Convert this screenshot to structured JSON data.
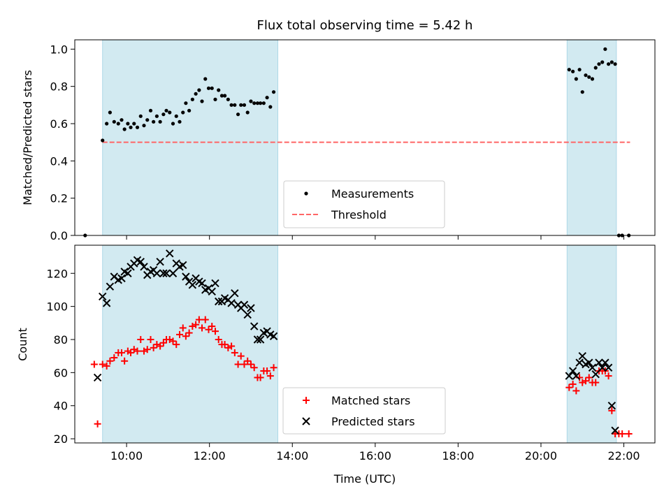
{
  "colors": {
    "shade": "#add8e6",
    "measurement": "#000000",
    "threshold": "#ff6666",
    "matched": "#ff0000",
    "predicted": "#000000"
  },
  "chart_data": [
    {
      "type": "scatter",
      "title": "Flux total observing time = 5.42 h",
      "xlabel": "",
      "ylabel": "Matched/Predicted stars",
      "xlim": [
        8.75,
        22.75
      ],
      "ylim": [
        0.0,
        1.05
      ],
      "yticks": [
        0.0,
        0.2,
        0.4,
        0.6,
        0.8,
        1.0
      ],
      "ytick_labels": [
        "0.0",
        "0.2",
        "0.4",
        "0.6",
        "0.8",
        "1.0"
      ],
      "xticks": [
        10,
        12,
        14,
        16,
        18,
        20,
        22
      ],
      "shaded_intervals": [
        [
          9.42,
          13.65
        ],
        [
          20.63,
          21.82
        ]
      ],
      "legend_position": "lower-center",
      "series": [
        {
          "name": "Measurements",
          "marker": "dot",
          "points": [
            [
              9.0,
              0.0
            ],
            [
              9.42,
              0.51
            ],
            [
              9.52,
              0.6
            ],
            [
              9.6,
              0.66
            ],
            [
              9.7,
              0.61
            ],
            [
              9.8,
              0.6
            ],
            [
              9.88,
              0.62
            ],
            [
              9.95,
              0.57
            ],
            [
              10.03,
              0.6
            ],
            [
              10.1,
              0.58
            ],
            [
              10.18,
              0.6
            ],
            [
              10.26,
              0.58
            ],
            [
              10.34,
              0.64
            ],
            [
              10.42,
              0.59
            ],
            [
              10.5,
              0.62
            ],
            [
              10.58,
              0.67
            ],
            [
              10.65,
              0.61
            ],
            [
              10.73,
              0.64
            ],
            [
              10.81,
              0.61
            ],
            [
              10.89,
              0.65
            ],
            [
              10.96,
              0.67
            ],
            [
              11.04,
              0.66
            ],
            [
              11.12,
              0.6
            ],
            [
              11.2,
              0.64
            ],
            [
              11.28,
              0.61
            ],
            [
              11.36,
              0.66
            ],
            [
              11.43,
              0.71
            ],
            [
              11.51,
              0.67
            ],
            [
              11.59,
              0.73
            ],
            [
              11.67,
              0.76
            ],
            [
              11.75,
              0.78
            ],
            [
              11.82,
              0.72
            ],
            [
              11.9,
              0.84
            ],
            [
              11.98,
              0.79
            ],
            [
              12.06,
              0.79
            ],
            [
              12.14,
              0.73
            ],
            [
              12.22,
              0.78
            ],
            [
              12.3,
              0.75
            ],
            [
              12.37,
              0.75
            ],
            [
              12.45,
              0.73
            ],
            [
              12.53,
              0.7
            ],
            [
              12.61,
              0.7
            ],
            [
              12.69,
              0.65
            ],
            [
              12.76,
              0.7
            ],
            [
              12.84,
              0.7
            ],
            [
              12.92,
              0.66
            ],
            [
              13.0,
              0.72
            ],
            [
              13.08,
              0.71
            ],
            [
              13.16,
              0.71
            ],
            [
              13.23,
              0.71
            ],
            [
              13.31,
              0.71
            ],
            [
              13.39,
              0.74
            ],
            [
              13.47,
              0.69
            ],
            [
              13.55,
              0.77
            ],
            [
              20.68,
              0.89
            ],
            [
              20.77,
              0.88
            ],
            [
              20.85,
              0.84
            ],
            [
              20.93,
              0.89
            ],
            [
              21.0,
              0.77
            ],
            [
              21.08,
              0.86
            ],
            [
              21.16,
              0.85
            ],
            [
              21.24,
              0.84
            ],
            [
              21.32,
              0.9
            ],
            [
              21.4,
              0.92
            ],
            [
              21.48,
              0.93
            ],
            [
              21.55,
              1.0
            ],
            [
              21.63,
              0.92
            ],
            [
              21.71,
              0.93
            ],
            [
              21.79,
              0.92
            ],
            [
              21.88,
              0.0
            ],
            [
              21.96,
              0.0
            ],
            [
              22.12,
              0.0
            ]
          ]
        },
        {
          "name": "Threshold",
          "style": "dashed-line",
          "x": [
            9.42,
            22.15
          ],
          "y": [
            0.5,
            0.5
          ]
        }
      ]
    },
    {
      "type": "scatter",
      "title": "",
      "xlabel": "Time (UTC)",
      "ylabel": "Count",
      "xlim": [
        8.75,
        22.75
      ],
      "ylim": [
        17.5,
        137
      ],
      "yticks": [
        20,
        40,
        60,
        80,
        100,
        120
      ],
      "ytick_labels": [
        "20",
        "40",
        "60",
        "80",
        "100",
        "120"
      ],
      "xticks": [
        10,
        12,
        14,
        16,
        18,
        20,
        22
      ],
      "xtick_labels": [
        "10:00",
        "12:00",
        "14:00",
        "16:00",
        "18:00",
        "20:00",
        "22:00"
      ],
      "shaded_intervals": [
        [
          9.42,
          13.65
        ],
        [
          20.63,
          21.82
        ]
      ],
      "legend_position": "lower-center",
      "series": [
        {
          "name": "Matched stars",
          "marker": "plus",
          "points": [
            [
              9.22,
              65
            ],
            [
              9.3,
              29
            ],
            [
              9.42,
              65
            ],
            [
              9.52,
              64
            ],
            [
              9.6,
              67
            ],
            [
              9.7,
              69
            ],
            [
              9.8,
              72
            ],
            [
              9.88,
              72
            ],
            [
              9.95,
              67
            ],
            [
              10.03,
              73
            ],
            [
              10.1,
              72
            ],
            [
              10.18,
              74
            ],
            [
              10.26,
              73
            ],
            [
              10.34,
              80
            ],
            [
              10.42,
              73
            ],
            [
              10.5,
              74
            ],
            [
              10.58,
              80
            ],
            [
              10.65,
              75
            ],
            [
              10.73,
              77
            ],
            [
              10.81,
              76
            ],
            [
              10.89,
              78
            ],
            [
              10.96,
              80
            ],
            [
              11.04,
              80
            ],
            [
              11.12,
              79
            ],
            [
              11.2,
              77
            ],
            [
              11.28,
              83
            ],
            [
              11.36,
              87
            ],
            [
              11.43,
              82
            ],
            [
              11.51,
              84
            ],
            [
              11.59,
              88
            ],
            [
              11.67,
              89
            ],
            [
              11.75,
              92
            ],
            [
              11.82,
              87
            ],
            [
              11.9,
              92
            ],
            [
              11.98,
              86
            ],
            [
              12.06,
              88
            ],
            [
              12.14,
              85
            ],
            [
              12.22,
              80
            ],
            [
              12.3,
              77
            ],
            [
              12.37,
              77
            ],
            [
              12.45,
              75
            ],
            [
              12.53,
              76
            ],
            [
              12.61,
              72
            ],
            [
              12.69,
              65
            ],
            [
              12.76,
              70
            ],
            [
              12.84,
              65
            ],
            [
              12.92,
              67
            ],
            [
              13.0,
              65
            ],
            [
              13.08,
              63
            ],
            [
              13.16,
              57
            ],
            [
              13.23,
              57
            ],
            [
              13.31,
              61
            ],
            [
              13.39,
              61
            ],
            [
              13.47,
              58
            ],
            [
              13.55,
              63
            ],
            [
              20.68,
              51
            ],
            [
              20.77,
              53
            ],
            [
              20.85,
              49
            ],
            [
              20.93,
              57
            ],
            [
              21.0,
              54
            ],
            [
              21.08,
              55
            ],
            [
              21.16,
              57
            ],
            [
              21.24,
              54
            ],
            [
              21.32,
              54
            ],
            [
              21.4,
              61
            ],
            [
              21.48,
              61
            ],
            [
              21.55,
              61
            ],
            [
              21.63,
              58
            ],
            [
              21.71,
              37
            ],
            [
              21.79,
              23
            ],
            [
              21.88,
              23
            ],
            [
              21.96,
              23
            ],
            [
              22.12,
              23
            ]
          ]
        },
        {
          "name": "Predicted stars",
          "marker": "x",
          "points": [
            [
              9.3,
              57
            ],
            [
              9.42,
              106
            ],
            [
              9.52,
              102
            ],
            [
              9.6,
              112
            ],
            [
              9.7,
              118
            ],
            [
              9.8,
              116
            ],
            [
              9.88,
              117
            ],
            [
              9.95,
              121
            ],
            [
              10.03,
              120
            ],
            [
              10.1,
              124
            ],
            [
              10.18,
              126
            ],
            [
              10.26,
              128
            ],
            [
              10.34,
              127
            ],
            [
              10.42,
              124
            ],
            [
              10.5,
              119
            ],
            [
              10.58,
              121
            ],
            [
              10.65,
              122
            ],
            [
              10.73,
              120
            ],
            [
              10.81,
              127
            ],
            [
              10.89,
              120
            ],
            [
              10.96,
              120
            ],
            [
              11.04,
              132
            ],
            [
              11.12,
              120
            ],
            [
              11.2,
              126
            ],
            [
              11.28,
              124
            ],
            [
              11.36,
              125
            ],
            [
              11.43,
              118
            ],
            [
              11.51,
              115
            ],
            [
              11.59,
              113
            ],
            [
              11.67,
              117
            ],
            [
              11.75,
              115
            ],
            [
              11.82,
              114
            ],
            [
              11.9,
              110
            ],
            [
              11.98,
              111
            ],
            [
              12.06,
              109
            ],
            [
              12.14,
              114
            ],
            [
              12.22,
              103
            ],
            [
              12.3,
              103
            ],
            [
              12.37,
              105
            ],
            [
              12.45,
              104
            ],
            [
              12.53,
              102
            ],
            [
              12.61,
              108
            ],
            [
              12.69,
              101
            ],
            [
              12.76,
              99
            ],
            [
              12.84,
              101
            ],
            [
              12.92,
              95
            ],
            [
              13.0,
              99
            ],
            [
              13.08,
              88
            ],
            [
              13.16,
              80
            ],
            [
              13.23,
              80
            ],
            [
              13.31,
              84
            ],
            [
              13.39,
              85
            ],
            [
              13.47,
              83
            ],
            [
              13.55,
              82
            ],
            [
              20.68,
              58
            ],
            [
              20.77,
              61
            ],
            [
              20.85,
              58
            ],
            [
              20.93,
              66
            ],
            [
              21.0,
              70
            ],
            [
              21.08,
              65
            ],
            [
              21.16,
              66
            ],
            [
              21.24,
              63
            ],
            [
              21.32,
              59
            ],
            [
              21.4,
              66
            ],
            [
              21.48,
              63
            ],
            [
              21.55,
              66
            ],
            [
              21.63,
              63
            ],
            [
              21.71,
              40
            ],
            [
              21.79,
              25
            ]
          ]
        }
      ]
    }
  ]
}
